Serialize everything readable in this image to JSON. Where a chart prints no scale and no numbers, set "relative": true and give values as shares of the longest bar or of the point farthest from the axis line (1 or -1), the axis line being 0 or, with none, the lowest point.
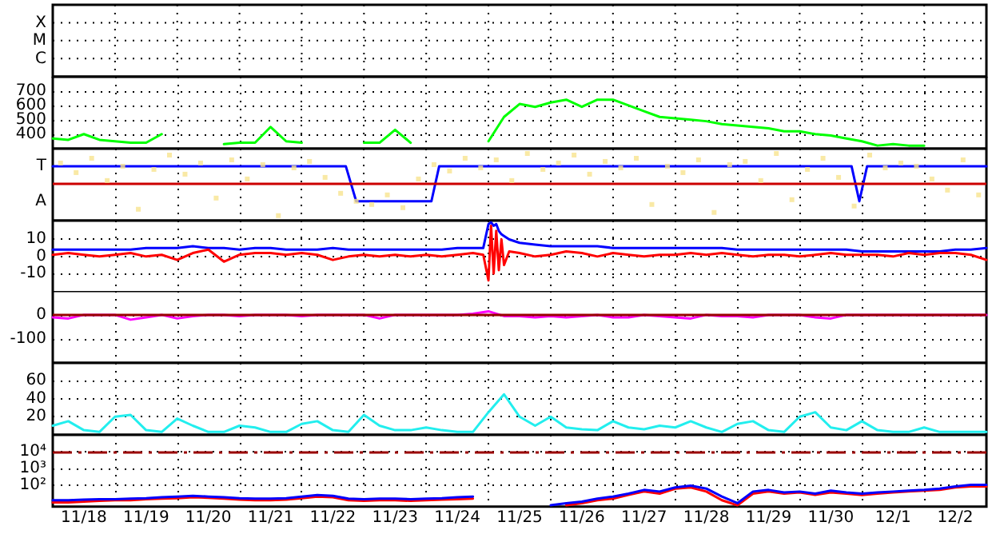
{
  "chart_data": [
    {
      "type": "other",
      "annotations": [
        "X",
        "M",
        "C"
      ]
    },
    {
      "type": "line",
      "ylim": [
        300,
        800
      ],
      "yticks": [
        400,
        500,
        600,
        700
      ],
      "xlim": [
        "--11-18T00:00",
        "--12-03T00:00"
      ],
      "xticks": [
        {
          "value": "--11-19T00:00",
          "label": null
        },
        {
          "value": "--11-20T00:00",
          "label": null
        },
        {
          "value": "--11-21T00:00",
          "label": null
        },
        {
          "value": "--11-22T00:00",
          "label": null
        },
        {
          "value": "--11-23T00:00",
          "label": null
        },
        {
          "value": "--11-24T00:00",
          "label": null
        },
        {
          "value": "--11-25T00:00",
          "label": null
        },
        {
          "value": "--11-26T00:00",
          "label": null
        },
        {
          "value": "--11-27T00:00",
          "label": null
        },
        {
          "value": "--11-28T00:00",
          "label": null
        },
        {
          "value": "--11-29T00:00",
          "label": null
        },
        {
          "value": "--11-30T00:00",
          "label": null
        },
        {
          "value": "--12-01T00:00",
          "label": null
        },
        {
          "value": "--12-02T00:00",
          "label": null
        }
      ],
      "grid": true,
      "tick_labels": "y",
      "x": [
        "--11-18T00:00",
        "--11-18T06:00",
        "--11-18T12:00",
        "--11-18T18:00",
        "--11-19T00:00",
        "--11-19T06:00",
        "--11-19T12:00",
        "--11-19T18:00",
        "--11-20T00:00",
        "--11-20T06:00",
        "--11-20T12:00",
        "--11-20T18:00",
        "--11-21T00:00",
        "--11-21T06:00",
        "--11-21T12:00",
        "--11-21T18:00",
        "--11-22T00:00",
        "--11-22T06:00",
        "--11-22T12:00",
        "--11-22T18:00",
        "--11-23T00:00",
        "--11-23T06:00",
        "--11-23T12:00",
        "--11-23T18:00",
        "--11-24T00:00",
        "--11-24T06:00",
        "--11-24T12:00",
        "--11-24T18:00",
        "--11-25T00:00",
        "--11-25T06:00",
        "--11-25T12:00",
        "--11-25T18:00",
        "--11-26T00:00",
        "--11-26T06:00",
        "--11-26T12:00",
        "--11-26T18:00",
        "--11-27T00:00",
        "--11-27T06:00",
        "--11-27T12:00",
        "--11-27T18:00",
        "--11-28T00:00",
        "--11-28T06:00",
        "--11-28T12:00",
        "--11-28T18:00",
        "--11-29T00:00",
        "--11-29T06:00",
        "--11-29T12:00",
        "--11-29T18:00",
        "--11-30T00:00",
        "--11-30T06:00",
        "--11-30T12:00",
        "--11-30T18:00",
        "--12-01T00:00",
        "--12-01T06:00",
        "--12-01T12:00",
        "--12-01T18:00",
        "--12-02T00:00"
      ],
      "series": [
        {
          "color": "#00ff00",
          "values": [
            370,
            360,
            400,
            360,
            350,
            340,
            340,
            400,
            null,
            null,
            null,
            330,
            340,
            340,
            450,
            350,
            340,
            null,
            null,
            null,
            340,
            340,
            430,
            340,
            null,
            null,
            null,
            null,
            350,
            520,
            610,
            590,
            620,
            640,
            590,
            640,
            640,
            600,
            560,
            520,
            510,
            500,
            490,
            470,
            460,
            450,
            440,
            420,
            420,
            400,
            390,
            370,
            350,
            320,
            330,
            320,
            320
          ]
        }
      ]
    },
    {
      "type": "line",
      "relative": true,
      "annotations": [
        "T",
        "A"
      ],
      "xlim": [
        "--11-18T00:00",
        "--12-03T00:00"
      ],
      "xticks": [
        {
          "value": "--11-19T00:00",
          "label": null
        },
        {
          "value": "--11-20T00:00",
          "label": null
        },
        {
          "value": "--11-21T00:00",
          "label": null
        },
        {
          "value": "--11-22T00:00",
          "label": null
        },
        {
          "value": "--11-23T00:00",
          "label": null
        },
        {
          "value": "--11-24T00:00",
          "label": null
        },
        {
          "value": "--11-25T00:00",
          "label": null
        },
        {
          "value": "--11-26T00:00",
          "label": null
        },
        {
          "value": "--11-27T00:00",
          "label": null
        },
        {
          "value": "--11-28T00:00",
          "label": null
        },
        {
          "value": "--11-29T00:00",
          "label": null
        },
        {
          "value": "--11-30T00:00",
          "label": null
        },
        {
          "value": "--12-01T00:00",
          "label": null
        },
        {
          "value": "--12-02T00:00",
          "label": null
        }
      ],
      "grid": true,
      "tick_labels": "y",
      "ref_lines": [
        {
          "axis": "y",
          "value": 0,
          "color": "#cc0000"
        }
      ],
      "series": [
        {
          "type": "scatter",
          "color": "#f8e38e",
          "x": [
            "--11-18T03:00",
            "--11-18T09:00",
            "--11-18T15:00",
            "--11-18T21:00",
            "--11-19T03:00",
            "--11-19T09:00",
            "--11-19T15:00",
            "--11-19T21:00",
            "--11-20T03:00",
            "--11-20T09:00",
            "--11-20T15:00",
            "--11-20T21:00",
            "--11-21T03:00",
            "--11-21T09:00",
            "--11-21T15:00",
            "--11-21T21:00",
            "--11-22T03:00",
            "--11-22T09:00",
            "--11-22T15:00",
            "--11-22T21:00",
            "--11-23T03:00",
            "--11-23T09:00",
            "--11-23T15:00",
            "--11-23T21:00",
            "--11-24T03:00",
            "--11-24T09:00",
            "--11-24T15:00",
            "--11-24T21:00",
            "--11-25T03:00",
            "--11-25T09:00",
            "--11-25T15:00",
            "--11-25T21:00",
            "--11-26T03:00",
            "--11-26T09:00",
            "--11-26T15:00",
            "--11-26T21:00",
            "--11-27T03:00",
            "--11-27T09:00",
            "--11-27T15:00",
            "--11-27T21:00",
            "--11-28T03:00",
            "--11-28T09:00",
            "--11-28T15:00",
            "--11-28T21:00",
            "--11-29T03:00",
            "--11-29T09:00",
            "--11-29T15:00",
            "--11-29T21:00",
            "--11-30T03:00",
            "--11-30T09:00",
            "--11-30T15:00",
            "--11-30T21:00",
            "--12-01T03:00",
            "--12-01T09:00",
            "--12-01T15:00",
            "--12-01T21:00",
            "--12-02T03:00",
            "--12-02T09:00",
            "--12-02T15:00",
            "--12-02T21:00"
          ],
          "values": [
            0.65,
            0.35,
            0.8,
            0.1,
            0.55,
            -0.8,
            0.45,
            0.9,
            0.3,
            0.65,
            -0.45,
            0.75,
            0.15,
            0.6,
            -1,
            0.5,
            0.7,
            0.2,
            -0.3,
            -0.55,
            -0.65,
            -0.35,
            -0.75,
            0.15,
            0.6,
            0.4,
            0.8,
            0.5,
            0.75,
            0.1,
            0.95,
            0.45,
            0.65,
            0.9,
            0.3,
            0.7,
            0.5,
            0.8,
            -0.65,
            0.55,
            0.35,
            0.75,
            -0.9,
            0.6,
            0.7,
            0.1,
            0.95,
            -0.5,
            0.45,
            0.8,
            0.2,
            -0.7,
            0.9,
            0.5,
            0.65,
            0.55,
            0.15,
            -0.2,
            0.75,
            -0.35
          ]
        },
        {
          "color": "#0000ff",
          "x": [
            "--11-18T00:00",
            "--11-22T17:00",
            "--11-22T21:00",
            "--11-24T02:00",
            "--11-24T05:00",
            "--11-30T20:00",
            "--11-30T23:00",
            "--12-01T02:00",
            "--12-03T00:00"
          ],
          "values": [
            0.55,
            0.55,
            -0.55,
            -0.55,
            0.55,
            0.55,
            -0.55,
            0.55,
            0.55
          ]
        }
      ]
    },
    {
      "type": "line",
      "ylim": [
        -21,
        21
      ],
      "yticks": [
        -10,
        0,
        10
      ],
      "xlim": [
        "--11-18T00:00",
        "--12-03T00:00"
      ],
      "xticks": [
        {
          "value": "--11-19T00:00",
          "label": null
        },
        {
          "value": "--11-20T00:00",
          "label": null
        },
        {
          "value": "--11-21T00:00",
          "label": null
        },
        {
          "value": "--11-22T00:00",
          "label": null
        },
        {
          "value": "--11-23T00:00",
          "label": null
        },
        {
          "value": "--11-24T00:00",
          "label": null
        },
        {
          "value": "--11-25T00:00",
          "label": null
        },
        {
          "value": "--11-26T00:00",
          "label": null
        },
        {
          "value": "--11-27T00:00",
          "label": null
        },
        {
          "value": "--11-28T00:00",
          "label": null
        },
        {
          "value": "--11-29T00:00",
          "label": null
        },
        {
          "value": "--11-30T00:00",
          "label": null
        },
        {
          "value": "--12-01T00:00",
          "label": null
        },
        {
          "value": "--12-02T00:00",
          "label": null
        }
      ],
      "grid": true,
      "tick_labels": "y",
      "x": [
        "--11-18T00:00",
        "--11-18T06:00",
        "--11-18T12:00",
        "--11-18T18:00",
        "--11-19T00:00",
        "--11-19T06:00",
        "--11-19T12:00",
        "--11-19T18:00",
        "--11-20T00:00",
        "--11-20T06:00",
        "--11-20T12:00",
        "--11-20T18:00",
        "--11-21T00:00",
        "--11-21T06:00",
        "--11-21T12:00",
        "--11-21T18:00",
        "--11-22T00:00",
        "--11-22T06:00",
        "--11-22T12:00",
        "--11-22T18:00",
        "--11-23T00:00",
        "--11-23T06:00",
        "--11-23T12:00",
        "--11-23T18:00",
        "--11-24T00:00",
        "--11-24T06:00",
        "--11-24T12:00",
        "--11-24T18:00",
        "--11-24T22:00",
        "--11-25T00:00",
        "--11-25T01:00",
        "--11-25T02:00",
        "--11-25T03:00",
        "--11-25T04:00",
        "--11-25T05:00",
        "--11-25T06:00",
        "--11-25T08:00",
        "--11-25T12:00",
        "--11-25T18:00",
        "--11-26T00:00",
        "--11-26T06:00",
        "--11-26T12:00",
        "--11-26T18:00",
        "--11-27T00:00",
        "--11-27T06:00",
        "--11-27T12:00",
        "--11-27T18:00",
        "--11-28T00:00",
        "--11-28T06:00",
        "--11-28T12:00",
        "--11-28T18:00",
        "--11-29T00:00",
        "--11-29T06:00",
        "--11-29T12:00",
        "--11-29T18:00",
        "--11-30T00:00",
        "--11-30T06:00",
        "--11-30T12:00",
        "--11-30T18:00",
        "--12-01T00:00",
        "--12-01T06:00",
        "--12-01T12:00",
        "--12-01T18:00",
        "--12-02T00:00",
        "--12-02T06:00",
        "--12-02T12:00",
        "--12-02T18:00",
        "--12-03T00:00"
      ],
      "series": [
        {
          "color": "#0000ff",
          "values": [
            4,
            4,
            4,
            4,
            4,
            4,
            5,
            5,
            5,
            6,
            5,
            5,
            4,
            5,
            5,
            4,
            4,
            4,
            5,
            4,
            4,
            4,
            4,
            4,
            4,
            4,
            5,
            5,
            5,
            19,
            20,
            18,
            19,
            15,
            13,
            12,
            10,
            8,
            7,
            6,
            6,
            6,
            6,
            5,
            5,
            5,
            5,
            5,
            5,
            5,
            5,
            4,
            4,
            4,
            4,
            4,
            4,
            4,
            4,
            3,
            3,
            3,
            3,
            3,
            3,
            4,
            4,
            5
          ]
        },
        {
          "color": "#ff0000",
          "values": [
            1,
            2,
            1,
            0,
            1,
            2,
            0,
            1,
            -2,
            2,
            4,
            -3,
            1,
            2,
            2,
            1,
            2,
            1,
            -2,
            0,
            1,
            0,
            1,
            0,
            1,
            0,
            1,
            2,
            1,
            -14,
            18,
            -10,
            15,
            -8,
            10,
            -5,
            3,
            2,
            0,
            1,
            3,
            2,
            0,
            2,
            1,
            0,
            1,
            1,
            2,
            1,
            2,
            1,
            0,
            1,
            1,
            0,
            1,
            2,
            1,
            1,
            1,
            0,
            2,
            1,
            2,
            2,
            1,
            -2
          ]
        }
      ]
    },
    {
      "type": "line",
      "ylim": [
        -200,
        100
      ],
      "yticks": [
        -100,
        0
      ],
      "xlim": [
        "--11-18T00:00",
        "--12-03T00:00"
      ],
      "xticks": [
        {
          "value": "--11-19T00:00",
          "label": null
        },
        {
          "value": "--11-20T00:00",
          "label": null
        },
        {
          "value": "--11-21T00:00",
          "label": null
        },
        {
          "value": "--11-22T00:00",
          "label": null
        },
        {
          "value": "--11-23T00:00",
          "label": null
        },
        {
          "value": "--11-24T00:00",
          "label": null
        },
        {
          "value": "--11-25T00:00",
          "label": null
        },
        {
          "value": "--11-26T00:00",
          "label": null
        },
        {
          "value": "--11-27T00:00",
          "label": null
        },
        {
          "value": "--11-28T00:00",
          "label": null
        },
        {
          "value": "--11-29T00:00",
          "label": null
        },
        {
          "value": "--11-30T00:00",
          "label": null
        },
        {
          "value": "--12-01T00:00",
          "label": null
        },
        {
          "value": "--12-02T00:00",
          "label": null
        }
      ],
      "grid": true,
      "tick_labels": "y",
      "ref_lines": [
        {
          "axis": "y",
          "value": 0,
          "color": "#990000"
        }
      ],
      "x": [
        "--11-18T00:00",
        "--11-18T06:00",
        "--11-18T12:00",
        "--11-18T18:00",
        "--11-19T00:00",
        "--11-19T06:00",
        "--11-19T12:00",
        "--11-19T18:00",
        "--11-20T00:00",
        "--11-20T06:00",
        "--11-20T12:00",
        "--11-20T18:00",
        "--11-21T00:00",
        "--11-21T06:00",
        "--11-21T12:00",
        "--11-21T18:00",
        "--11-22T00:00",
        "--11-22T06:00",
        "--11-22T12:00",
        "--11-22T18:00",
        "--11-23T00:00",
        "--11-23T06:00",
        "--11-23T12:00",
        "--11-23T18:00",
        "--11-24T00:00",
        "--11-24T06:00",
        "--11-24T12:00",
        "--11-24T18:00",
        "--11-25T00:00",
        "--11-25T06:00",
        "--11-25T12:00",
        "--11-25T18:00",
        "--11-26T00:00",
        "--11-26T06:00",
        "--11-26T12:00",
        "--11-26T18:00",
        "--11-27T00:00",
        "--11-27T06:00",
        "--11-27T12:00",
        "--11-27T18:00",
        "--11-28T00:00",
        "--11-28T06:00",
        "--11-28T12:00",
        "--11-28T18:00",
        "--11-29T00:00",
        "--11-29T06:00",
        "--11-29T12:00",
        "--11-29T18:00",
        "--11-30T00:00",
        "--11-30T06:00",
        "--11-30T12:00",
        "--11-30T18:00",
        "--12-01T00:00",
        "--12-01T06:00",
        "--12-01T12:00",
        "--12-01T18:00",
        "--12-02T00:00",
        "--12-02T06:00",
        "--12-02T12:00",
        "--12-02T18:00",
        "--12-03T00:00"
      ],
      "series": [
        {
          "color": "#ff00ff",
          "values": [
            -10,
            -15,
            0,
            0,
            0,
            -20,
            -10,
            0,
            -15,
            -5,
            0,
            0,
            -5,
            0,
            0,
            0,
            -5,
            0,
            0,
            0,
            0,
            -15,
            0,
            0,
            0,
            0,
            0,
            5,
            15,
            -5,
            -5,
            -10,
            -5,
            -10,
            -5,
            0,
            -10,
            -10,
            0,
            -5,
            -10,
            -15,
            0,
            -5,
            -5,
            -10,
            0,
            0,
            0,
            -10,
            -15,
            0,
            0,
            0,
            0,
            0,
            0,
            0,
            0,
            0,
            0
          ]
        }
      ]
    },
    {
      "type": "line",
      "ylim": [
        0,
        80
      ],
      "yticks": [
        20,
        40,
        60
      ],
      "xlim": [
        "--11-18T00:00",
        "--12-03T00:00"
      ],
      "xticks": [
        {
          "value": "--11-19T00:00",
          "label": null
        },
        {
          "value": "--11-20T00:00",
          "label": null
        },
        {
          "value": "--11-21T00:00",
          "label": null
        },
        {
          "value": "--11-22T00:00",
          "label": null
        },
        {
          "value": "--11-23T00:00",
          "label": null
        },
        {
          "value": "--11-24T00:00",
          "label": null
        },
        {
          "value": "--11-25T00:00",
          "label": null
        },
        {
          "value": "--11-26T00:00",
          "label": null
        },
        {
          "value": "--11-27T00:00",
          "label": null
        },
        {
          "value": "--11-28T00:00",
          "label": null
        },
        {
          "value": "--11-29T00:00",
          "label": null
        },
        {
          "value": "--11-30T00:00",
          "label": null
        },
        {
          "value": "--12-01T00:00",
          "label": null
        },
        {
          "value": "--12-02T00:00",
          "label": null
        }
      ],
      "grid": true,
      "tick_labels": "y",
      "x": [
        "--11-18T00:00",
        "--11-18T06:00",
        "--11-18T12:00",
        "--11-18T18:00",
        "--11-19T00:00",
        "--11-19T06:00",
        "--11-19T12:00",
        "--11-19T18:00",
        "--11-20T00:00",
        "--11-20T06:00",
        "--11-20T12:00",
        "--11-20T18:00",
        "--11-21T00:00",
        "--11-21T06:00",
        "--11-21T12:00",
        "--11-21T18:00",
        "--11-22T00:00",
        "--11-22T06:00",
        "--11-22T12:00",
        "--11-22T18:00",
        "--11-23T00:00",
        "--11-23T06:00",
        "--11-23T12:00",
        "--11-23T18:00",
        "--11-24T00:00",
        "--11-24T06:00",
        "--11-24T12:00",
        "--11-24T18:00",
        "--11-25T00:00",
        "--11-25T06:00",
        "--11-25T12:00",
        "--11-25T18:00",
        "--11-26T00:00",
        "--11-26T06:00",
        "--11-26T12:00",
        "--11-26T18:00",
        "--11-27T00:00",
        "--11-27T06:00",
        "--11-27T12:00",
        "--11-27T18:00",
        "--11-28T00:00",
        "--11-28T06:00",
        "--11-28T12:00",
        "--11-28T18:00",
        "--11-29T00:00",
        "--11-29T06:00",
        "--11-29T12:00",
        "--11-29T18:00",
        "--11-30T00:00",
        "--11-30T06:00",
        "--11-30T12:00",
        "--11-30T18:00",
        "--12-01T00:00",
        "--12-01T06:00",
        "--12-01T12:00",
        "--12-01T18:00",
        "--12-02T00:00",
        "--12-02T06:00",
        "--12-02T12:00",
        "--12-02T18:00",
        "--12-03T00:00"
      ],
      "series": [
        {
          "color": "#22eeee",
          "values": [
            10,
            15,
            5,
            3,
            20,
            22,
            5,
            3,
            18,
            10,
            3,
            3,
            10,
            8,
            3,
            3,
            12,
            15,
            5,
            3,
            22,
            10,
            5,
            5,
            8,
            5,
            3,
            3,
            25,
            45,
            20,
            10,
            20,
            8,
            6,
            5,
            15,
            8,
            6,
            10,
            8,
            15,
            8,
            3,
            12,
            15,
            5,
            3,
            20,
            25,
            8,
            5,
            15,
            5,
            3,
            3,
            8,
            3,
            3,
            3,
            3
          ]
        }
      ]
    },
    {
      "type": "line",
      "log": "y",
      "ylim": [
        5,
        100000
      ],
      "yticks": [
        {
          "value": 100,
          "label": "10²"
        },
        {
          "value": 1000,
          "label": "10³"
        },
        {
          "value": 10000,
          "label": "10⁴"
        }
      ],
      "xlim": [
        "--11-18T00:00",
        "--12-03T00:00"
      ],
      "xticks": [
        {
          "value": "--11-18T12:00",
          "label": "11/18"
        },
        {
          "value": "--11-19T00:00",
          "label": null
        },
        {
          "value": "--11-19T12:00",
          "label": "11/19"
        },
        {
          "value": "--11-20T00:00",
          "label": null
        },
        {
          "value": "--11-20T12:00",
          "label": "11/20"
        },
        {
          "value": "--11-21T00:00",
          "label": null
        },
        {
          "value": "--11-21T12:00",
          "label": "11/21"
        },
        {
          "value": "--11-22T00:00",
          "label": null
        },
        {
          "value": "--11-22T12:00",
          "label": "11/22"
        },
        {
          "value": "--11-23T00:00",
          "label": null
        },
        {
          "value": "--11-23T12:00",
          "label": "11/23"
        },
        {
          "value": "--11-24T00:00",
          "label": null
        },
        {
          "value": "--11-24T12:00",
          "label": "11/24"
        },
        {
          "value": "--11-25T00:00",
          "label": null
        },
        {
          "value": "--11-25T12:00",
          "label": "11/25"
        },
        {
          "value": "--11-26T00:00",
          "label": null
        },
        {
          "value": "--11-26T12:00",
          "label": "11/26"
        },
        {
          "value": "--11-27T00:00",
          "label": null
        },
        {
          "value": "--11-27T12:00",
          "label": "11/27"
        },
        {
          "value": "--11-28T00:00",
          "label": null
        },
        {
          "value": "--11-28T12:00",
          "label": "11/28"
        },
        {
          "value": "--11-29T00:00",
          "label": null
        },
        {
          "value": "--11-29T12:00",
          "label": "11/29"
        },
        {
          "value": "--11-30T00:00",
          "label": null
        },
        {
          "value": "--11-30T12:00",
          "label": "11/30"
        },
        {
          "value": "--12-01T00:00",
          "label": null
        },
        {
          "value": "--12-01T12:00",
          "label": "12/1"
        },
        {
          "value": "--12-02T00:00",
          "label": null
        },
        {
          "value": "--12-02T12:00",
          "label": "12/2"
        }
      ],
      "grid": true,
      "ref_lines": [
        {
          "axis": "y",
          "value": 10000,
          "color": "#990000",
          "line_style": "dashed"
        }
      ],
      "x": [
        "--11-18T00:00",
        "--11-18T06:00",
        "--11-18T12:00",
        "--11-18T18:00",
        "--11-19T00:00",
        "--11-19T06:00",
        "--11-19T12:00",
        "--11-19T18:00",
        "--11-20T00:00",
        "--11-20T06:00",
        "--11-20T12:00",
        "--11-20T18:00",
        "--11-21T00:00",
        "--11-21T06:00",
        "--11-21T12:00",
        "--11-21T18:00",
        "--11-22T00:00",
        "--11-22T06:00",
        "--11-22T12:00",
        "--11-22T18:00",
        "--11-23T00:00",
        "--11-23T06:00",
        "--11-23T12:00",
        "--11-23T18:00",
        "--11-24T00:00",
        "--11-24T06:00",
        "--11-24T12:00",
        "--11-24T18:00",
        "--11-25T00:00",
        "--11-25T06:00",
        "--11-25T12:00",
        "--11-25T18:00",
        "--11-26T00:00",
        "--11-26T06:00",
        "--11-26T12:00",
        "--11-26T18:00",
        "--11-27T00:00",
        "--11-27T06:00",
        "--11-27T12:00",
        "--11-27T18:00",
        "--11-28T00:00",
        "--11-28T06:00",
        "--11-28T12:00",
        "--11-28T18:00",
        "--11-29T00:00",
        "--11-29T06:00",
        "--11-29T12:00",
        "--11-29T18:00",
        "--11-30T00:00",
        "--11-30T06:00",
        "--11-30T12:00",
        "--11-30T18:00",
        "--12-01T00:00",
        "--12-01T06:00",
        "--12-01T12:00",
        "--12-01T18:00",
        "--12-02T00:00",
        "--12-02T06:00",
        "--12-02T12:00",
        "--12-02T18:00",
        "--12-03T00:00"
      ],
      "series": [
        {
          "color": "#ff0000",
          "values": [
            9,
            9,
            10,
            11,
            12,
            12,
            14,
            15,
            16,
            18,
            17,
            15,
            13,
            12,
            12,
            13,
            16,
            20,
            18,
            12,
            11,
            12,
            12,
            11,
            12,
            13,
            14,
            15,
            null,
            null,
            null,
            null,
            null,
            6,
            8,
            12,
            15,
            25,
            40,
            30,
            60,
            70,
            40,
            12,
            6,
            30,
            40,
            30,
            35,
            25,
            35,
            30,
            25,
            30,
            35,
            40,
            45,
            50,
            70,
            80,
            80
          ]
        },
        {
          "color": "#0000ff",
          "values": [
            12,
            12,
            13,
            14,
            14,
            15,
            16,
            18,
            20,
            22,
            20,
            18,
            16,
            15,
            15,
            16,
            20,
            25,
            22,
            15,
            14,
            15,
            15,
            14,
            15,
            16,
            18,
            20,
            null,
            null,
            null,
            null,
            6,
            8,
            10,
            15,
            20,
            30,
            50,
            40,
            70,
            90,
            60,
            20,
            8,
            40,
            50,
            35,
            40,
            30,
            45,
            35,
            30,
            35,
            40,
            45,
            50,
            60,
            80,
            100,
            100
          ]
        }
      ]
    }
  ]
}
